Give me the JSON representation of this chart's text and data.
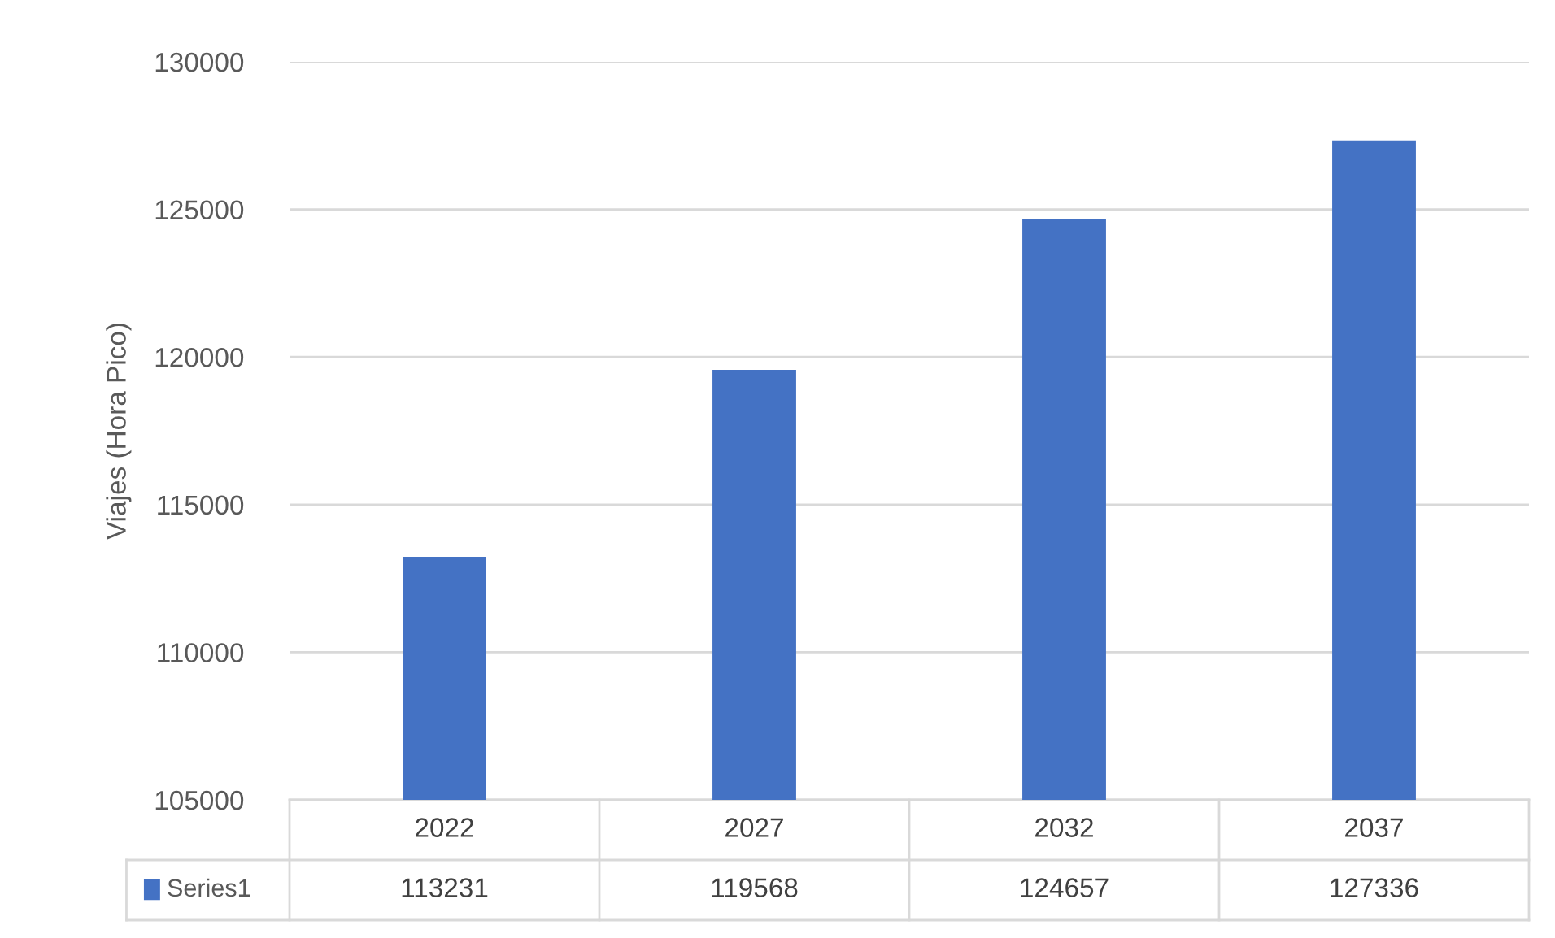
{
  "chart_data": {
    "type": "bar",
    "ylabel": "Viajes (Hora Pico)",
    "categories": [
      "2022",
      "2027",
      "2032",
      "2037"
    ],
    "series": [
      {
        "name": "Series1",
        "color": "#4472c4",
        "values": [
          113231,
          119568,
          124657,
          127336
        ]
      }
    ],
    "ylim": [
      105000,
      130000
    ],
    "yticks": [
      105000,
      110000,
      115000,
      120000,
      125000,
      130000
    ],
    "grid": "y",
    "legend": "bottom",
    "data_labels": true
  }
}
